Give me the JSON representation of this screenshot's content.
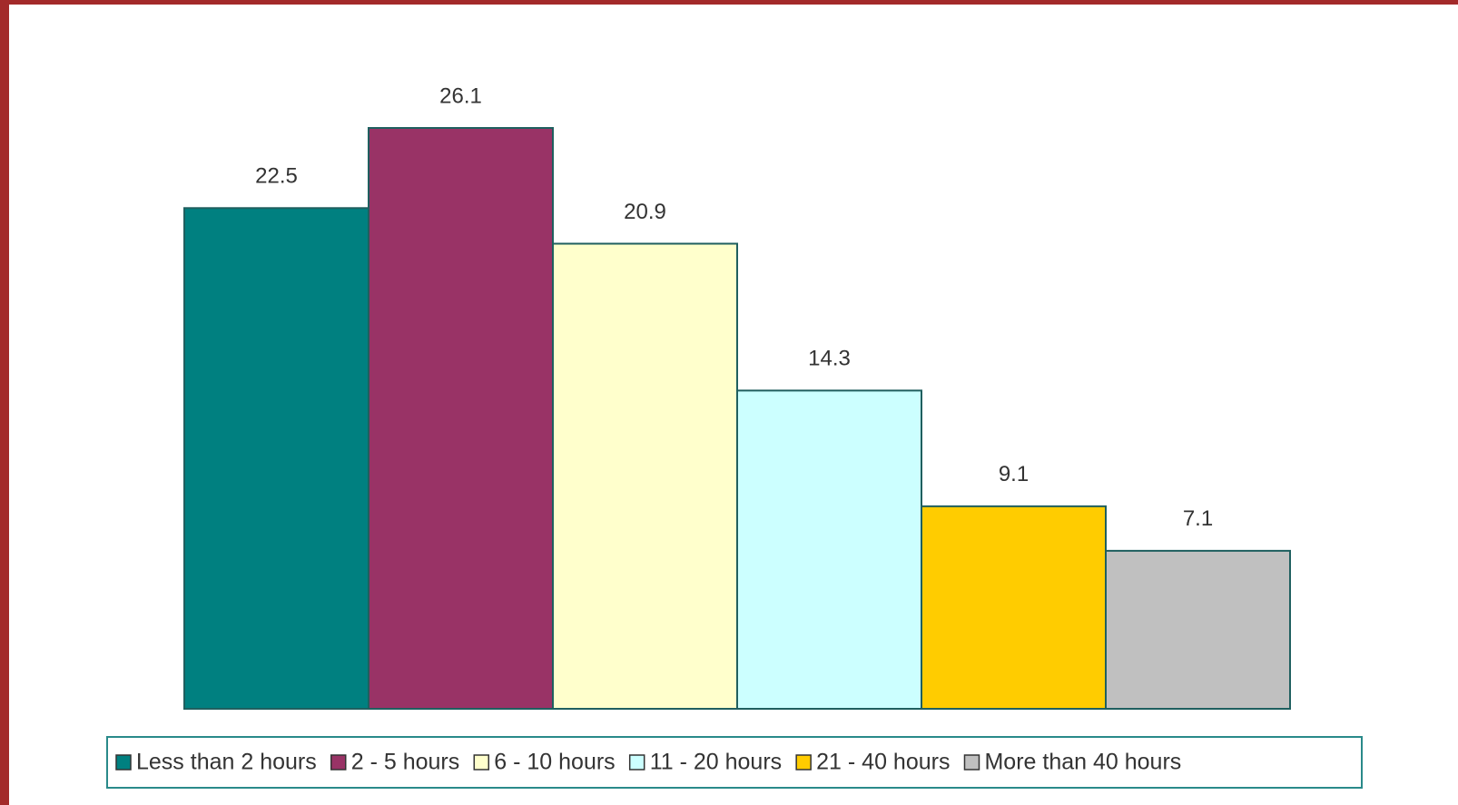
{
  "chart_data": {
    "type": "bar",
    "series": [
      {
        "name": "Less than 2 hours",
        "color": "#008080",
        "values": [
          22.5
        ]
      },
      {
        "name": "2 - 5 hours",
        "color": "#993366",
        "values": [
          26.1
        ]
      },
      {
        "name": "6 - 10 hours",
        "color": "#ffffcc",
        "values": [
          20.9
        ]
      },
      {
        "name": "11 - 20 hours",
        "color": "#ccffff",
        "values": [
          14.3
        ]
      },
      {
        "name": "21 - 40 hours",
        "color": "#ffcc00",
        "values": [
          9.1
        ]
      },
      {
        "name": "More than 40 hours",
        "color": "#c0c0c0",
        "values": [
          7.1
        ]
      }
    ],
    "legend": "bottom"
  }
}
